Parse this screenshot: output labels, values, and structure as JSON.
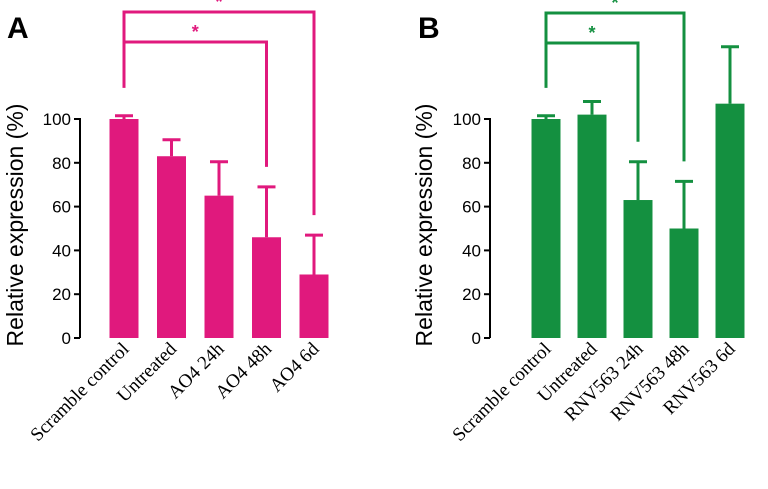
{
  "chart_data": [
    {
      "panel": "A",
      "type": "bar",
      "color": "#e0197d",
      "ylabel": "Relative expression (%)",
      "ylim": [
        0,
        100
      ],
      "yticks": [
        "0",
        "20",
        "40",
        "60",
        "80",
        "100"
      ],
      "categories": [
        "Scramble control",
        "Untreated",
        "AO4 24h",
        "AO4 48h",
        "AO4 6d"
      ],
      "values": [
        100,
        83,
        65,
        46,
        29
      ],
      "errors": [
        1.5,
        7.5,
        15.5,
        23,
        18
      ],
      "significance": [
        {
          "from": "Scramble control",
          "to": "AO4 48h",
          "label": "*"
        },
        {
          "from": "Scramble control",
          "to": "AO4 6d",
          "label": "*"
        }
      ]
    },
    {
      "panel": "B",
      "type": "bar",
      "color": "#149040",
      "ylabel": "Relative expression (%)",
      "ylim": [
        0,
        100
      ],
      "yticks": [
        "0",
        "20",
        "40",
        "60",
        "80",
        "100"
      ],
      "categories": [
        "Scramble control",
        "Untreated",
        "RNV563 24h",
        "RNV563 48h",
        "RNV563 6d"
      ],
      "values": [
        100,
        102,
        63,
        50,
        107
      ],
      "errors": [
        1.5,
        6,
        17.5,
        21.5,
        26
      ],
      "significance": [
        {
          "from": "Scramble control",
          "to": "RNV563 24h",
          "label": "*"
        },
        {
          "from": "Scramble control",
          "to": "RNV563 48h",
          "label": "*"
        }
      ]
    }
  ]
}
